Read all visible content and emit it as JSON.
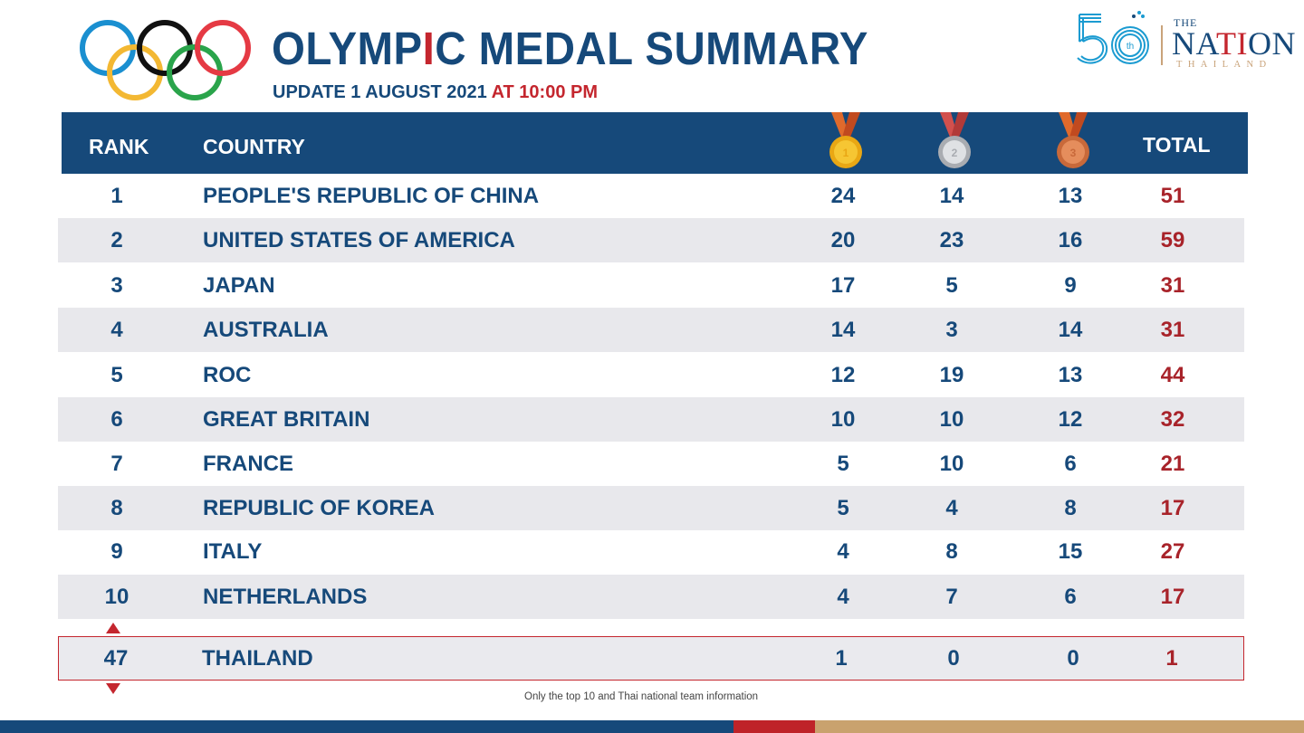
{
  "header": {
    "title_part1": "OLYMP",
    "title_highlight": "I",
    "title_part2": "C MEDAL SUMMARY",
    "subtitle_part1": "UPDATE 1 AUGUST 2021",
    "subtitle_part2": "AT 10:00 PM"
  },
  "brand": {
    "the": "THE",
    "nation_a": "NA",
    "nation_b": "TI",
    "nation_c": "ON",
    "thailand": "THAILAND",
    "anniversary": "50",
    "anniversary_suffix": "th"
  },
  "table": {
    "columns": {
      "rank": "RANK",
      "country": "COUNTRY",
      "gold_icon": "gold-medal-icon",
      "silver_icon": "silver-medal-icon",
      "bronze_icon": "bronze-medal-icon",
      "total": "TOTAL"
    },
    "rows": [
      {
        "rank": "1",
        "country": "PEOPLE'S REPUBLIC OF CHINA",
        "gold": "24",
        "silver": "14",
        "bronze": "13",
        "total": "51"
      },
      {
        "rank": "2",
        "country": "UNITED STATES OF AMERICA",
        "gold": "20",
        "silver": "23",
        "bronze": "16",
        "total": "59"
      },
      {
        "rank": "3",
        "country": "JAPAN",
        "gold": "17",
        "silver": "5",
        "bronze": "9",
        "total": "31"
      },
      {
        "rank": "4",
        "country": "AUSTRALIA",
        "gold": "14",
        "silver": "3",
        "bronze": "14",
        "total": "31"
      },
      {
        "rank": "5",
        "country": "ROC",
        "gold": "12",
        "silver": "19",
        "bronze": "13",
        "total": "44"
      },
      {
        "rank": "6",
        "country": "GREAT BRITAIN",
        "gold": "10",
        "silver": "10",
        "bronze": "12",
        "total": "32"
      },
      {
        "rank": "7",
        "country": "FRANCE",
        "gold": "5",
        "silver": "10",
        "bronze": "6",
        "total": "21"
      },
      {
        "rank": "8",
        "country": "REPUBLIC OF KOREA",
        "gold": "5",
        "silver": "4",
        "bronze": "8",
        "total": "17"
      },
      {
        "rank": "9",
        "country": "ITALY",
        "gold": "4",
        "silver": "8",
        "bronze": "15",
        "total": "27"
      },
      {
        "rank": "10",
        "country": "NETHERLANDS",
        "gold": "4",
        "silver": "7",
        "bronze": "6",
        "total": "17"
      }
    ],
    "highlight_row": {
      "rank": "47",
      "country": "THAILAND",
      "gold": "1",
      "silver": "0",
      "bronze": "0",
      "total": "1"
    }
  },
  "footnote": "Only the top 10 and Thai national team information",
  "colors": {
    "navy": "#16497a",
    "red": "#c4262e",
    "total_red": "#a8232a",
    "row_alt": "#e8e8ec",
    "gold_bar": "#c9a26e"
  }
}
